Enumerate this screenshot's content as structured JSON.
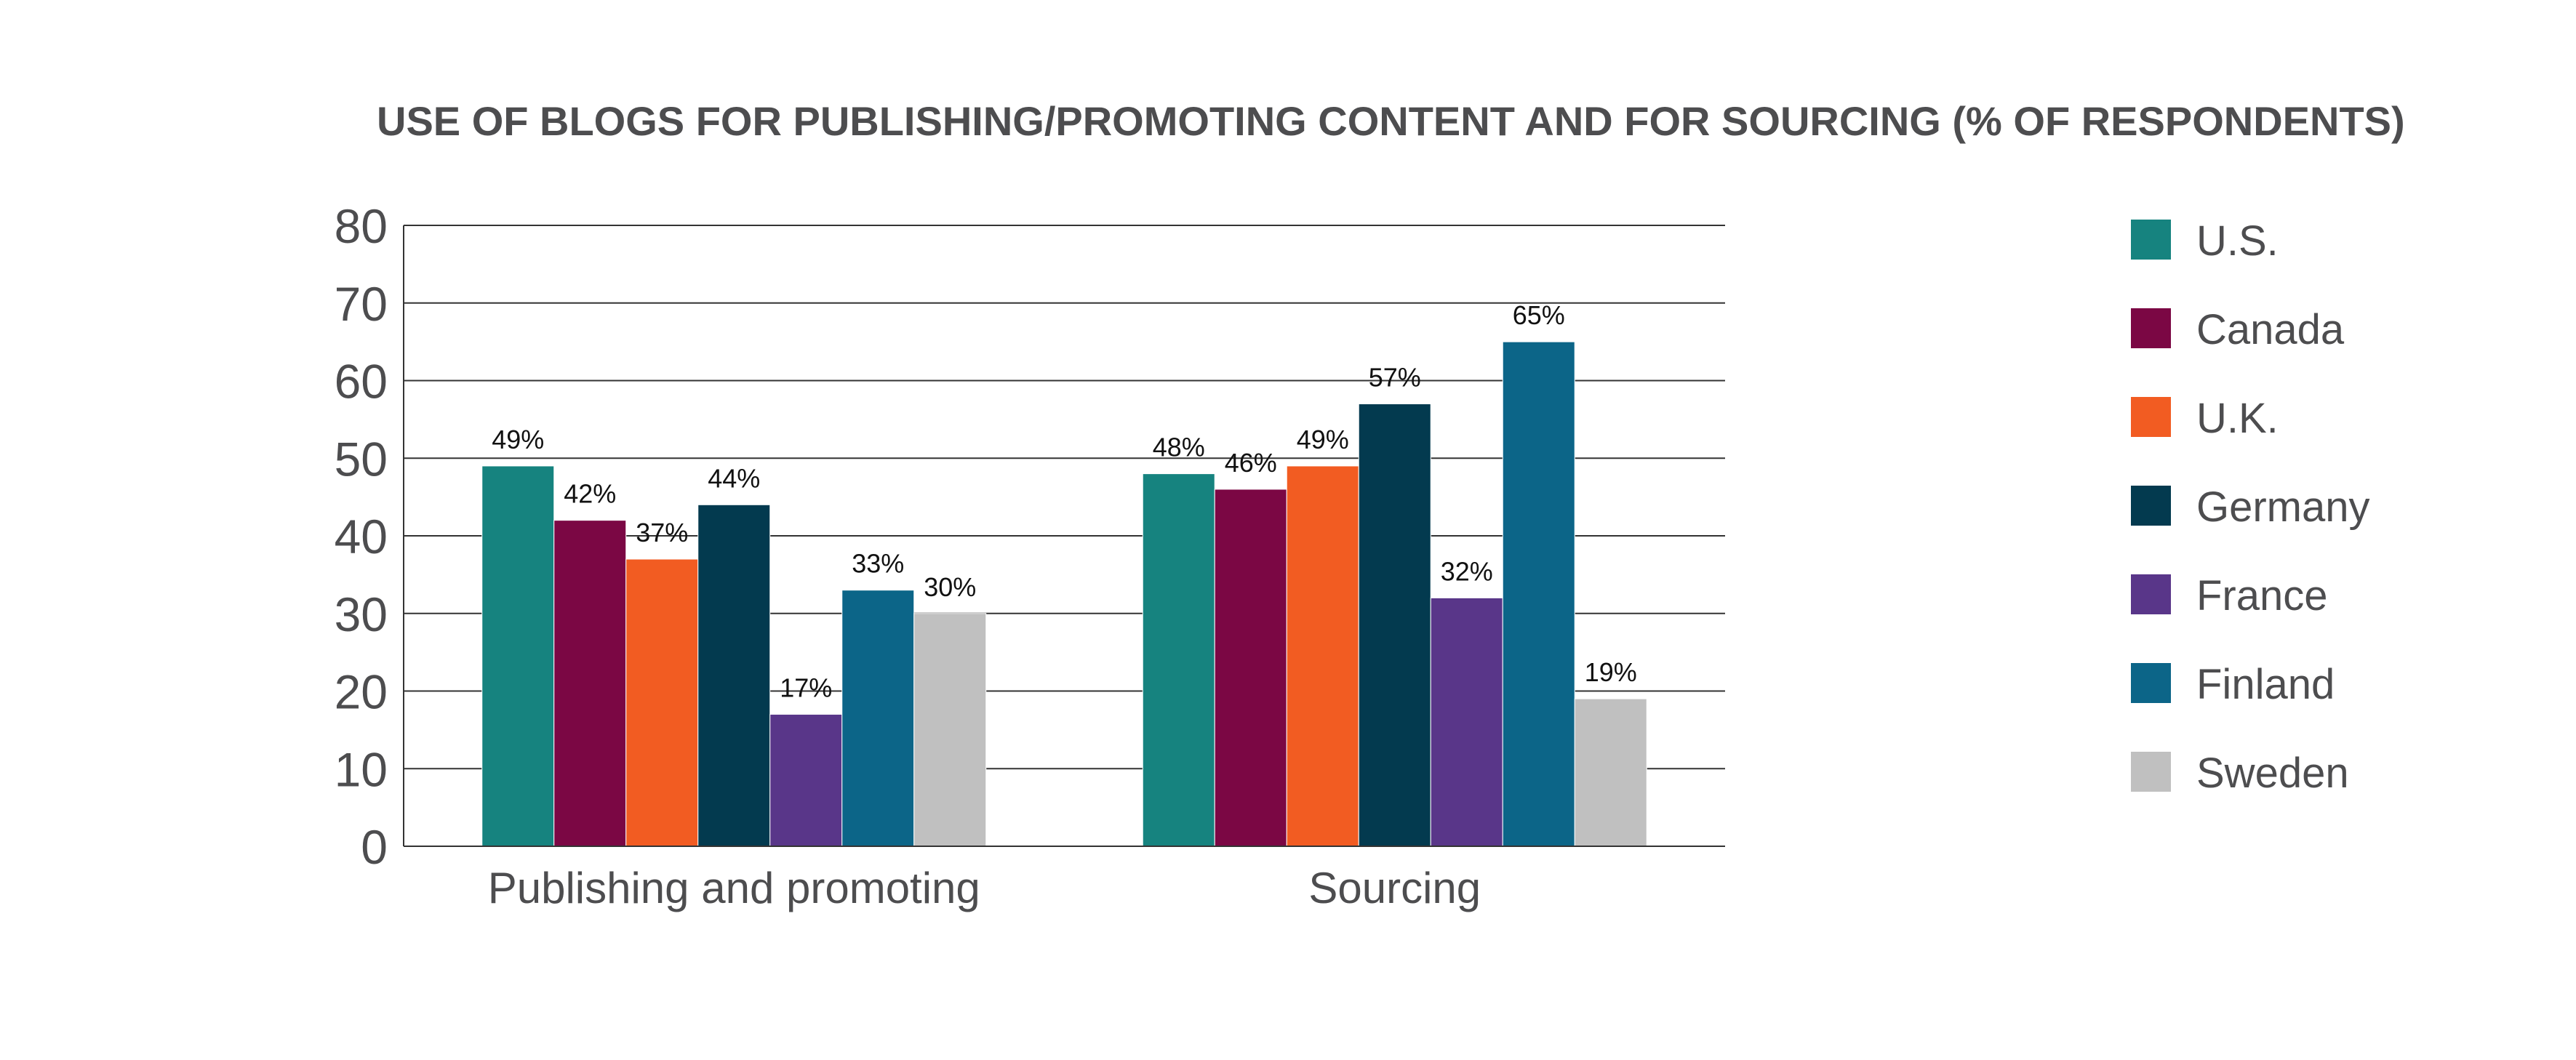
{
  "chart_data": {
    "type": "bar",
    "title": "USE OF BLOGS FOR PUBLISHING/PROMOTING CONTENT AND FOR SOURCING (% OF RESPONDENTS)",
    "xlabel": "",
    "ylabel": "",
    "categories": [
      "Publishing and promoting",
      "Sourcing"
    ],
    "ylim": [
      0,
      80
    ],
    "yticks": [
      0,
      10,
      20,
      30,
      40,
      50,
      60,
      70,
      80
    ],
    "grid": true,
    "legend_position": "right",
    "value_suffix": "%",
    "series": [
      {
        "name": "U.S.",
        "color": "#16837f",
        "values": [
          49,
          48
        ]
      },
      {
        "name": "Canada",
        "color": "#7b0744",
        "values": [
          42,
          46
        ]
      },
      {
        "name": "U.K.",
        "color": "#f25c22",
        "values": [
          37,
          49
        ]
      },
      {
        "name": "Germany",
        "color": "#033a4f",
        "values": [
          44,
          57
        ]
      },
      {
        "name": "France",
        "color": "#593689",
        "values": [
          17,
          32
        ]
      },
      {
        "name": "Finland",
        "color": "#0c6588",
        "values": [
          33,
          65
        ]
      },
      {
        "name": "Sweden",
        "color": "#c0c0c0",
        "values": [
          30,
          19
        ]
      }
    ]
  }
}
